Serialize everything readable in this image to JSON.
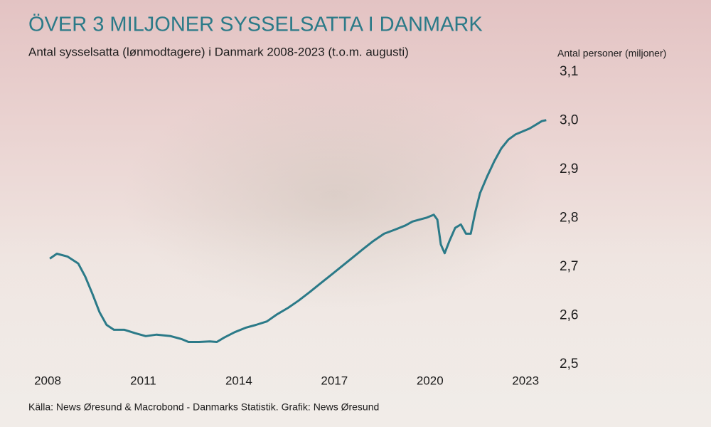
{
  "chart_data": {
    "type": "line",
    "title": "ÖVER 3 MILJONER SYSSELSATTA I DANMARK",
    "subtitle": "Antal sysselsatta (lønmodtagere) i Danmark 2008-2023 (t.o.m. augusti)",
    "y_axis_label": "Antal personer (miljoner)",
    "source": "Källa: News Øresund & Macrobond - Danmarks Statistik. Grafik: News Øresund",
    "xlim": [
      2008,
      2024
    ],
    "xticks": [
      2008,
      2011,
      2014,
      2017,
      2020,
      2023
    ],
    "ylim": [
      2.5,
      3.1
    ],
    "yticks": [
      {
        "value": 2.5,
        "label": "2,5"
      },
      {
        "value": 2.6,
        "label": "2,6"
      },
      {
        "value": 2.7,
        "label": "2,7"
      },
      {
        "value": 2.8,
        "label": "2,8"
      },
      {
        "value": 2.9,
        "label": "2,9"
      },
      {
        "value": 3.0,
        "label": "3,0"
      },
      {
        "value": 3.1,
        "label": "3,1"
      }
    ],
    "grid": false,
    "color": "#2b7a88",
    "x": [
      2008.07,
      2008.29,
      2008.63,
      2008.96,
      2009.18,
      2009.41,
      2009.63,
      2009.85,
      2010.08,
      2010.41,
      2010.75,
      2011.08,
      2011.42,
      2011.86,
      2012.2,
      2012.42,
      2012.75,
      2013.09,
      2013.31,
      2013.54,
      2013.87,
      2014.21,
      2014.54,
      2014.88,
      2015.21,
      2015.55,
      2015.88,
      2016.22,
      2016.56,
      2016.89,
      2017.23,
      2017.55,
      2017.89,
      2018.22,
      2018.56,
      2018.89,
      2019.23,
      2019.45,
      2019.67,
      2019.9,
      2020.12,
      2020.23,
      2020.34,
      2020.46,
      2020.61,
      2020.79,
      2020.97,
      2021.13,
      2021.28,
      2021.42,
      2021.57,
      2021.79,
      2022.02,
      2022.24,
      2022.46,
      2022.69,
      2022.91,
      2023.13,
      2023.36,
      2023.51,
      2023.65
    ],
    "values": [
      2.717,
      2.727,
      2.721,
      2.707,
      2.68,
      2.644,
      2.607,
      2.581,
      2.571,
      2.571,
      2.564,
      2.558,
      2.561,
      2.558,
      2.552,
      2.546,
      2.546,
      2.547,
      2.546,
      2.555,
      2.566,
      2.575,
      2.581,
      2.588,
      2.603,
      2.616,
      2.631,
      2.648,
      2.666,
      2.683,
      2.701,
      2.718,
      2.736,
      2.753,
      2.768,
      2.776,
      2.785,
      2.793,
      2.797,
      2.801,
      2.807,
      2.797,
      2.746,
      2.728,
      2.753,
      2.78,
      2.787,
      2.768,
      2.768,
      2.812,
      2.851,
      2.885,
      2.917,
      2.943,
      2.961,
      2.972,
      2.978,
      2.984,
      2.993,
      2.999,
      3.001
    ]
  }
}
